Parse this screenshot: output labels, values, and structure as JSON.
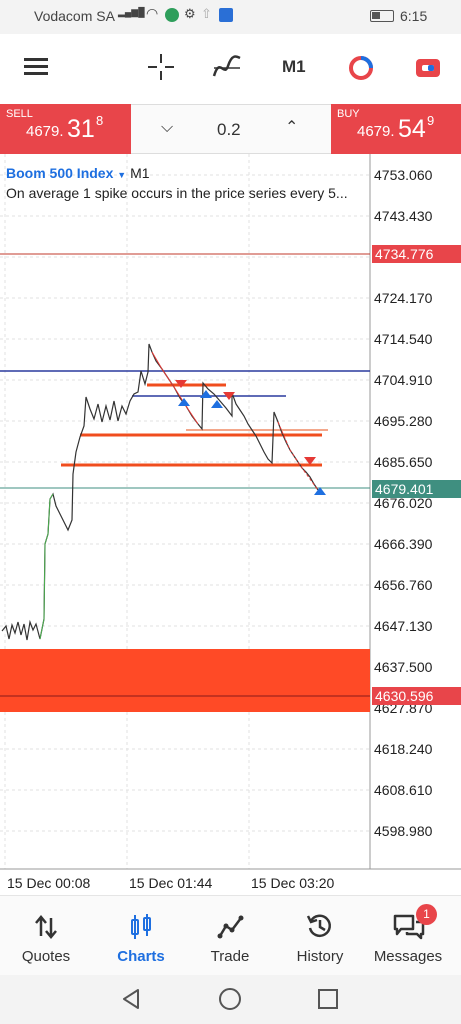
{
  "status_bar": {
    "carrier": "Vodacom SA",
    "time": "6:15"
  },
  "toolbar": {
    "menu_icon": "menu-icon",
    "crosshair_icon": "crosshair-icon",
    "indicators_icon": "indicators-icon",
    "timeframe": "M1",
    "objects_icon": "objects-icon",
    "trade_icon": "one-click-trade-icon"
  },
  "trade": {
    "sell_label": "SELL",
    "sell_price_main": "4679.",
    "sell_price_big": "31",
    "sell_price_sup": "8",
    "buy_label": "BUY",
    "buy_price_main": "4679.",
    "buy_price_big": "54",
    "buy_price_sup": "9",
    "lot": "0.2"
  },
  "chart": {
    "symbol": "Boom 500 Index",
    "timeframe": "M1",
    "description": "On average 1 spike occurs in the price series every 5...",
    "price_scale": [
      "4753.060",
      "4743.430",
      "4724.170",
      "4714.540",
      "4704.910",
      "4695.280",
      "4685.650",
      "4676.020",
      "4666.390",
      "4656.760",
      "4647.130",
      "4637.500",
      "4627.870",
      "4618.240",
      "4608.610",
      "4598.980"
    ],
    "tags": {
      "upper_line": "4734.776",
      "current": "4679.401",
      "lower_line": "4630.596"
    },
    "time_scale": [
      "15 Dec 00:08",
      "15 Dec 01:44",
      "15 Dec 03:20"
    ],
    "colors": {
      "red_line": "#c0392b",
      "blue_line": "#2a3a9e",
      "bid_line": "#3f8f80",
      "zone": "#ff4a26",
      "sell_arrow": "#e53935",
      "buy_arrow": "#1e6fe0",
      "candle": "#333333"
    }
  },
  "nav": {
    "items": [
      {
        "label": "Quotes",
        "icon": "quotes-icon"
      },
      {
        "label": "Charts",
        "icon": "charts-icon"
      },
      {
        "label": "Trade",
        "icon": "trade-icon"
      },
      {
        "label": "History",
        "icon": "history-icon"
      },
      {
        "label": "Messages",
        "icon": "messages-icon"
      }
    ],
    "messages_badge": "1",
    "active_color": "#1e6fe0"
  }
}
